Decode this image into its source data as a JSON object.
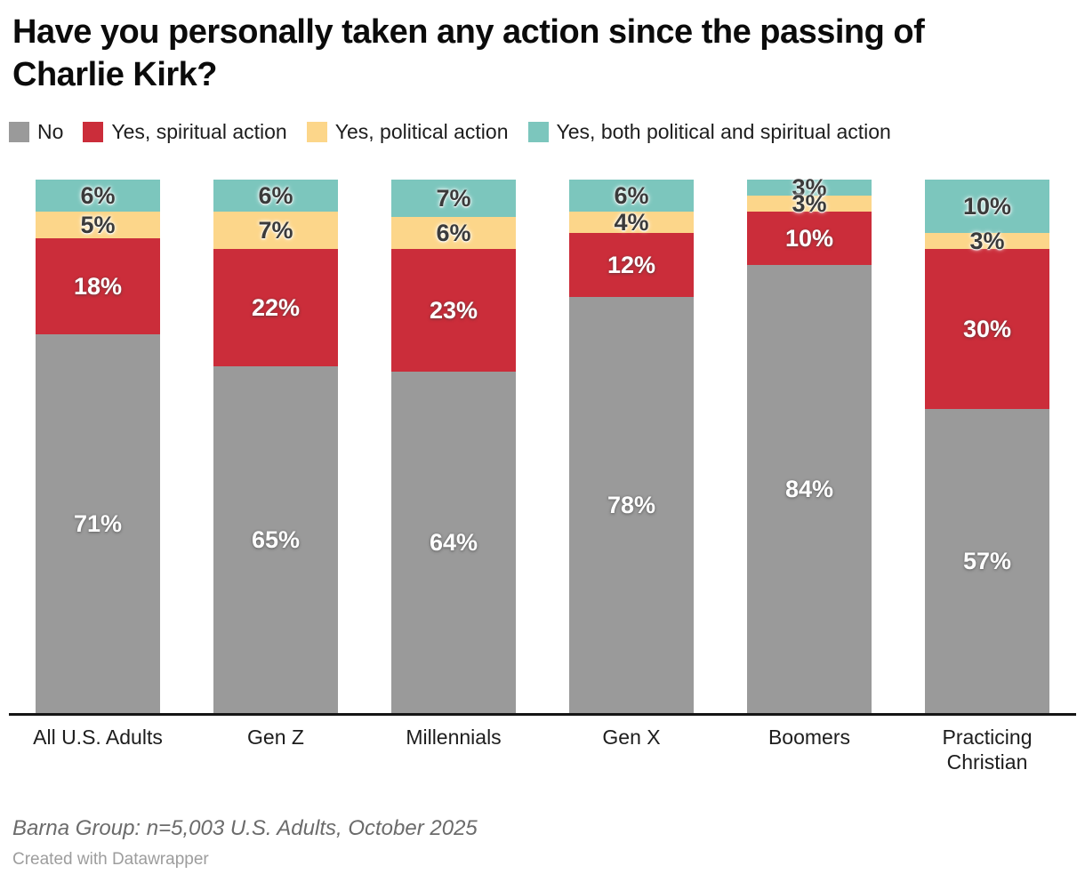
{
  "title": "Have you personally taken any action since the passing of\nCharlie Kirk?",
  "chart_data": {
    "type": "bar",
    "stacked": true,
    "orientation": "vertical",
    "unit": "%",
    "title": "Have you personally taken any action since the passing of Charlie Kirk?",
    "xlabel": "",
    "ylabel": "",
    "ylim": [
      0,
      100
    ],
    "grid": false,
    "legend_position": "top",
    "categories": [
      "All U.S. Adults",
      "Gen Z",
      "Millennials",
      "Gen X",
      "Boomers",
      "Practicing Christian"
    ],
    "series": [
      {
        "name": "No",
        "color": "#9a9a9a",
        "label_color": "#ffffff",
        "values": [
          71,
          65,
          64,
          78,
          84,
          57
        ]
      },
      {
        "name": "Yes, spiritual action",
        "color": "#cb2d3a",
        "label_color": "#ffffff",
        "values": [
          18,
          22,
          23,
          12,
          10,
          30
        ]
      },
      {
        "name": "Yes, political action",
        "color": "#fcd68a",
        "label_color": "#3b3b3b",
        "values": [
          5,
          7,
          6,
          4,
          3,
          3
        ]
      },
      {
        "name": "Yes, both political and spiritual action",
        "color": "#7cc6bd",
        "label_color": "#3b3b3b",
        "values": [
          6,
          6,
          7,
          6,
          3,
          10
        ]
      }
    ]
  },
  "footer": {
    "source": "Barna Group: n=5,003 U.S. Adults, October 2025",
    "attribution": "Created with Datawrapper"
  }
}
